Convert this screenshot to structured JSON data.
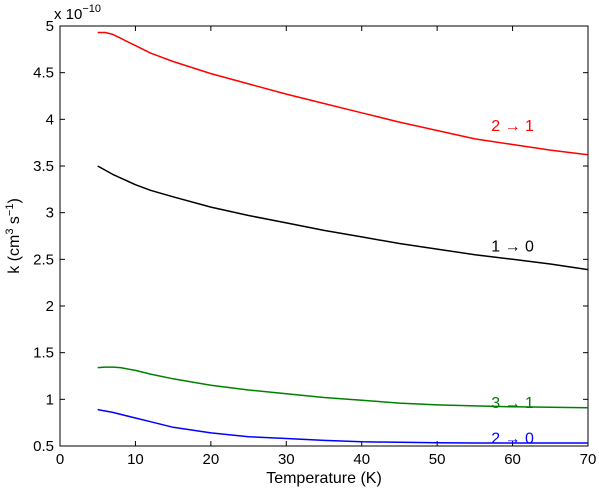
{
  "chart_data": {
    "type": "line",
    "xlabel": "Temperature (K)",
    "ylabel": {
      "base": "k (cm",
      "sup1": "3",
      "mid": " s",
      "sup2": "−1",
      "end": ")"
    },
    "y_multiplier": {
      "base": "x 10",
      "exp": "−10"
    },
    "xlim": [
      0,
      70
    ],
    "ylim": [
      0.5,
      5
    ],
    "x_ticks": [
      0,
      10,
      20,
      30,
      40,
      50,
      60,
      70
    ],
    "x_tick_labels": [
      "0",
      "10",
      "20",
      "30",
      "40",
      "50",
      "60",
      "70"
    ],
    "y_ticks": [
      0.5,
      1,
      1.5,
      2,
      2.5,
      3,
      3.5,
      4,
      4.5,
      5
    ],
    "y_tick_labels": [
      "0.5",
      "1",
      "1.5",
      "2",
      "2.5",
      "3",
      "3.5",
      "4",
      "4.5",
      "5"
    ],
    "grid": false,
    "series": [
      {
        "name": "2 → 1",
        "color": "#ff0000",
        "label_at": [
          60,
          3.93
        ],
        "points": [
          [
            5,
            4.93
          ],
          [
            6,
            4.93
          ],
          [
            7,
            4.91
          ],
          [
            8,
            4.87
          ],
          [
            10,
            4.79
          ],
          [
            12,
            4.71
          ],
          [
            15,
            4.62
          ],
          [
            20,
            4.49
          ],
          [
            25,
            4.38
          ],
          [
            30,
            4.27
          ],
          [
            35,
            4.17
          ],
          [
            40,
            4.07
          ],
          [
            45,
            3.97
          ],
          [
            50,
            3.88
          ],
          [
            55,
            3.79
          ],
          [
            60,
            3.73
          ],
          [
            65,
            3.67
          ],
          [
            70,
            3.62
          ]
        ]
      },
      {
        "name": "1 → 0",
        "color": "#000000",
        "label_at": [
          60,
          2.64
        ],
        "points": [
          [
            5,
            3.5
          ],
          [
            7,
            3.41
          ],
          [
            10,
            3.3
          ],
          [
            12,
            3.24
          ],
          [
            15,
            3.17
          ],
          [
            20,
            3.06
          ],
          [
            25,
            2.97
          ],
          [
            30,
            2.89
          ],
          [
            35,
            2.81
          ],
          [
            40,
            2.74
          ],
          [
            45,
            2.67
          ],
          [
            50,
            2.61
          ],
          [
            55,
            2.55
          ],
          [
            60,
            2.5
          ],
          [
            65,
            2.45
          ],
          [
            70,
            2.39
          ]
        ]
      },
      {
        "name": "3 → 1",
        "color": "#008000",
        "label_at": [
          60,
          0.96
        ],
        "points": [
          [
            5,
            1.34
          ],
          [
            6,
            1.345
          ],
          [
            7,
            1.345
          ],
          [
            8,
            1.34
          ],
          [
            10,
            1.31
          ],
          [
            12,
            1.27
          ],
          [
            15,
            1.22
          ],
          [
            20,
            1.15
          ],
          [
            25,
            1.1
          ],
          [
            30,
            1.06
          ],
          [
            35,
            1.02
          ],
          [
            40,
            0.99
          ],
          [
            45,
            0.96
          ],
          [
            50,
            0.94
          ],
          [
            55,
            0.93
          ],
          [
            60,
            0.92
          ],
          [
            65,
            0.915
          ],
          [
            70,
            0.91
          ]
        ]
      },
      {
        "name": "2 → 0",
        "color": "#0000ff",
        "label_at": [
          60,
          0.58
        ],
        "points": [
          [
            5,
            0.89
          ],
          [
            7,
            0.86
          ],
          [
            10,
            0.8
          ],
          [
            12,
            0.76
          ],
          [
            15,
            0.7
          ],
          [
            20,
            0.64
          ],
          [
            25,
            0.6
          ],
          [
            30,
            0.58
          ],
          [
            35,
            0.56
          ],
          [
            40,
            0.545
          ],
          [
            45,
            0.54
          ],
          [
            50,
            0.535
          ],
          [
            55,
            0.532
          ],
          [
            60,
            0.532
          ],
          [
            65,
            0.532
          ],
          [
            70,
            0.532
          ]
        ]
      }
    ]
  }
}
